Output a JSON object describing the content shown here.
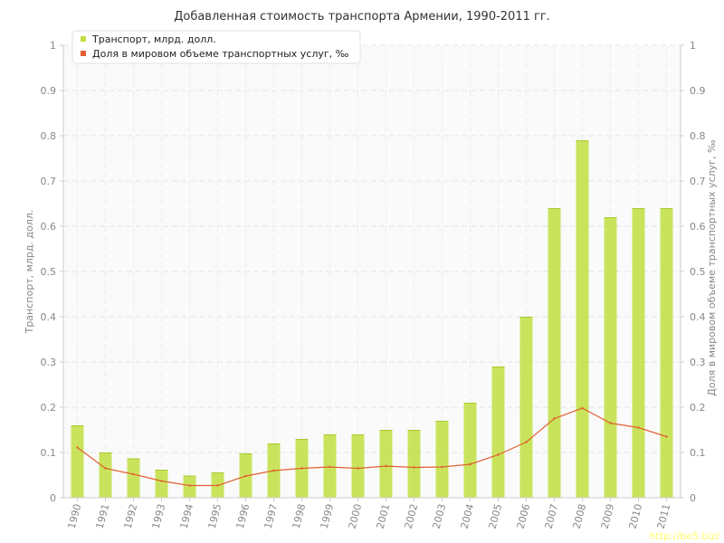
{
  "chart_data": {
    "type": "bar",
    "title": "Добавленная стоимость транспорта Армении, 1990-2011 гг.",
    "categories": [
      "1990",
      "1991",
      "1992",
      "1993",
      "1994",
      "1995",
      "1996",
      "1997",
      "1998",
      "1999",
      "2000",
      "2001",
      "2002",
      "2003",
      "2004",
      "2005",
      "2006",
      "2007",
      "2008",
      "2009",
      "2010",
      "2011"
    ],
    "series": [
      {
        "name": "Транспорт, млрд. долл.",
        "type": "bar",
        "axis": "left",
        "color": "#bfdf3f",
        "values": [
          0.16,
          0.1,
          0.087,
          0.062,
          0.049,
          0.056,
          0.098,
          0.12,
          0.13,
          0.14,
          0.14,
          0.15,
          0.15,
          0.17,
          0.21,
          0.29,
          0.4,
          0.64,
          0.79,
          0.62,
          0.64,
          0.64
        ]
      },
      {
        "name": "Доля в мировом объеме транспортных услуг, ‰",
        "type": "line",
        "axis": "right",
        "color": "#e06030",
        "values": [
          0.111,
          0.065,
          0.052,
          0.037,
          0.027,
          0.027,
          0.048,
          0.06,
          0.065,
          0.068,
          0.065,
          0.07,
          0.067,
          0.068,
          0.074,
          0.095,
          0.123,
          0.175,
          0.198,
          0.165,
          0.155,
          0.135
        ]
      }
    ],
    "ylabel": "Транспорт, млрд. долл.",
    "y2label": "Доля в мировом объеме транспортных услуг, ‰",
    "ylim": [
      0,
      1
    ],
    "y2lim": [
      0,
      1
    ],
    "yticks": [
      0,
      0.1,
      0.2,
      0.3,
      0.4,
      0.5,
      0.6,
      0.7,
      0.8,
      0.9,
      1
    ],
    "ytick_labels": [
      "0",
      "0.1",
      "0.2",
      "0.3",
      "0.4",
      "0.5",
      "0.6",
      "0.7",
      "0.8",
      "0.9",
      "1"
    ],
    "grid": true,
    "legend_position": "top-left"
  },
  "watermark": "http://be5.biz/"
}
